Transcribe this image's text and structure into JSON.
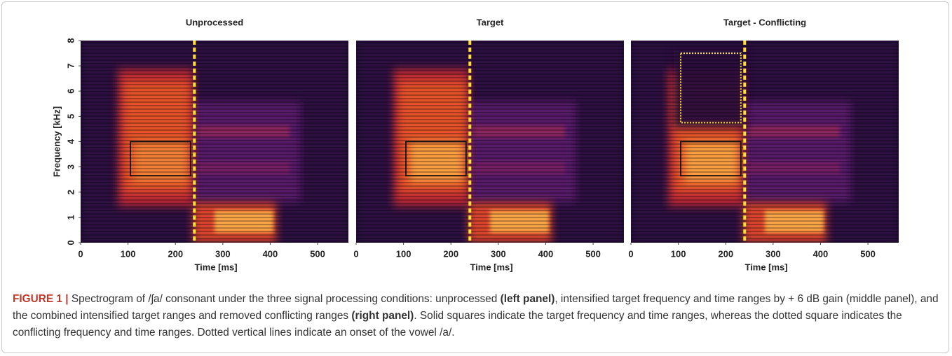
{
  "chart_data": [
    {
      "type": "spectrogram",
      "title": "Unprocessed",
      "xlabel": "Time [ms]",
      "ylabel": "Frequency [kHz]",
      "xlim": [
        0,
        565
      ],
      "xticks": [
        0,
        100,
        200,
        300,
        400,
        500
      ],
      "ylim": [
        0,
        8
      ],
      "yticks": [
        0,
        1,
        2,
        3,
        4,
        5,
        6,
        7,
        8
      ],
      "onset": 240,
      "onset_color": "#ffe030",
      "boxes": [
        {
          "style": "solid",
          "color": "#111111",
          "x": [
            105,
            232
          ],
          "y": [
            2.65,
            4.0
          ]
        }
      ]
    },
    {
      "type": "spectrogram",
      "title": "Target",
      "xlabel": "Time [ms]",
      "xlim": [
        0,
        565
      ],
      "xticks": [
        0,
        100,
        200,
        300,
        400,
        500
      ],
      "ylim": [
        0,
        8
      ],
      "onset": 240,
      "onset_color": "#ffe030",
      "boxes": [
        {
          "style": "solid",
          "color": "#111111",
          "x": [
            105,
            232
          ],
          "y": [
            2.65,
            4.0
          ]
        }
      ]
    },
    {
      "type": "spectrogram",
      "title": "Target - Conflicting",
      "xlabel": "Time [ms]",
      "xlim": [
        0,
        565
      ],
      "xticks": [
        0,
        100,
        200,
        300,
        400,
        500
      ],
      "ylim": [
        0,
        8
      ],
      "onset": 240,
      "onset_color": "#ffe030",
      "boxes": [
        {
          "style": "solid",
          "color": "#111111",
          "x": [
            105,
            232
          ],
          "y": [
            2.65,
            4.0
          ]
        },
        {
          "style": "dotted",
          "color": "#ffe030",
          "x": [
            105,
            232
          ],
          "y": [
            4.75,
            7.5
          ]
        }
      ]
    }
  ],
  "caption": [
    {
      "text": "FIGURE 1 |",
      "bold": true
    },
    {
      "text": " Spectrogram of /ʃa/ consonant under the three signal processing conditions: unprocessed "
    },
    {
      "text": "(left panel)",
      "bold": true
    },
    {
      "text": ", intensified target frequency and time ranges by + 6 dB gain (middle panel), and the combined intensified target ranges and removed conflicting ranges "
    },
    {
      "text": "(right panel)",
      "bold": true
    },
    {
      "text": ". Solid squares indicate the target frequency and time ranges, whereas the dotted square indicates the conflicting frequency and time ranges. Dotted vertical lines indicate an onset of the vowel /a/."
    }
  ]
}
